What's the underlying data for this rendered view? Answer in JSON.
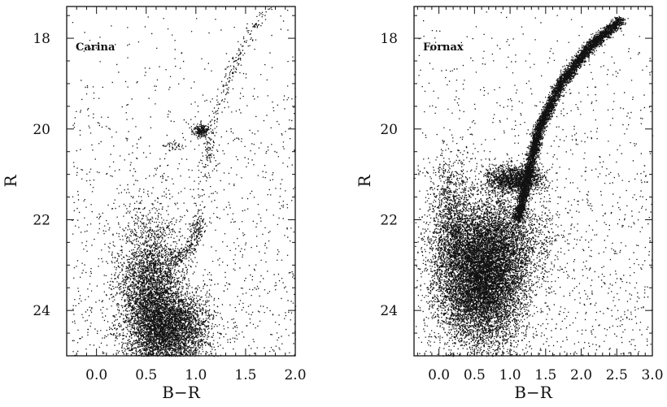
{
  "chart_data": [
    {
      "type": "scatter",
      "title": "",
      "panel_label": "Carina",
      "xlabel": "B−R",
      "ylabel": "R",
      "xlim": [
        -0.3,
        2.0
      ],
      "ylim": [
        25.0,
        17.3
      ],
      "y_inverted": true,
      "xticks": [
        0.0,
        0.5,
        1.0,
        1.5,
        2.0
      ],
      "xtick_labels": [
        "0.0",
        "0.5",
        "1.0",
        "1.5",
        "2.0"
      ],
      "yticks": [
        18,
        20,
        22,
        24
      ],
      "ytick_labels": [
        "18",
        "20",
        "22",
        "24"
      ],
      "grid": false,
      "marker_color": "#111111",
      "features": [
        {
          "name": "main-sequence-turnoff",
          "center": [
            0.55,
            23.6
          ],
          "spread": [
            0.16,
            0.8
          ],
          "n": 3800
        },
        {
          "name": "main-sequence",
          "center": [
            0.75,
            24.4
          ],
          "spread": [
            0.2,
            0.4
          ],
          "n": 3200
        },
        {
          "name": "subgiant-branch",
          "path": [
            [
              0.75,
              23.0
            ],
            [
              0.95,
              22.6
            ],
            [
              1.05,
              22.0
            ]
          ],
          "n": 250
        },
        {
          "name": "red-giant-branch",
          "path": [
            [
              1.0,
              22.4
            ],
            [
              1.08,
              21.0
            ],
            [
              1.15,
              20.0
            ],
            [
              1.3,
              19.0
            ],
            [
              1.5,
              18.0
            ],
            [
              1.72,
              17.3
            ]
          ],
          "n": 300
        },
        {
          "name": "red-clump",
          "center": [
            1.05,
            20.02
          ],
          "spread": [
            0.04,
            0.07
          ],
          "n": 220
        },
        {
          "name": "horizontal-branch",
          "path": [
            [
              0.65,
              20.4
            ],
            [
              0.85,
              20.35
            ]
          ],
          "n": 40
        },
        {
          "name": "field-stars",
          "range_x": [
            -0.25,
            2.0
          ],
          "range_y": [
            17.3,
            25.0
          ],
          "n": 1200
        }
      ]
    },
    {
      "type": "scatter",
      "title": "",
      "panel_label": "Fornax",
      "xlabel": "B−R",
      "ylabel": "R",
      "xlim": [
        -0.35,
        3.0
      ],
      "ylim": [
        25.0,
        17.3
      ],
      "y_inverted": true,
      "xticks": [
        0.0,
        0.5,
        1.0,
        1.5,
        2.0,
        2.5,
        3.0
      ],
      "xtick_labels": [
        "0.0",
        "0.5",
        "1.0",
        "1.5",
        "2.0",
        "2.5",
        "3.0"
      ],
      "yticks": [
        18,
        20,
        22,
        24
      ],
      "ytick_labels": [
        "18",
        "20",
        "22",
        "24"
      ],
      "grid": false,
      "marker_color": "#111111",
      "features": [
        {
          "name": "main-sequence",
          "center": [
            0.6,
            23.3
          ],
          "spread": [
            0.3,
            0.75
          ],
          "n": 9000
        },
        {
          "name": "blue-plume",
          "center": [
            0.15,
            22.2
          ],
          "spread": [
            0.15,
            0.8
          ],
          "n": 1400
        },
        {
          "name": "subgiant-region",
          "center": [
            0.9,
            22.4
          ],
          "spread": [
            0.35,
            0.5
          ],
          "n": 2000
        },
        {
          "name": "red-clump",
          "center": [
            1.05,
            21.1
          ],
          "spread": [
            0.2,
            0.15
          ],
          "n": 1400
        },
        {
          "name": "red-giant-branch",
          "path": [
            [
              1.1,
              22.0
            ],
            [
              1.25,
              21.0
            ],
            [
              1.4,
              20.0
            ],
            [
              1.7,
              19.0
            ],
            [
              2.1,
              18.2
            ],
            [
              2.55,
              17.6
            ]
          ],
          "n": 6000
        },
        {
          "name": "field-stars",
          "range_x": [
            -0.3,
            3.0
          ],
          "range_y": [
            17.3,
            25.0
          ],
          "n": 1400
        }
      ]
    }
  ]
}
